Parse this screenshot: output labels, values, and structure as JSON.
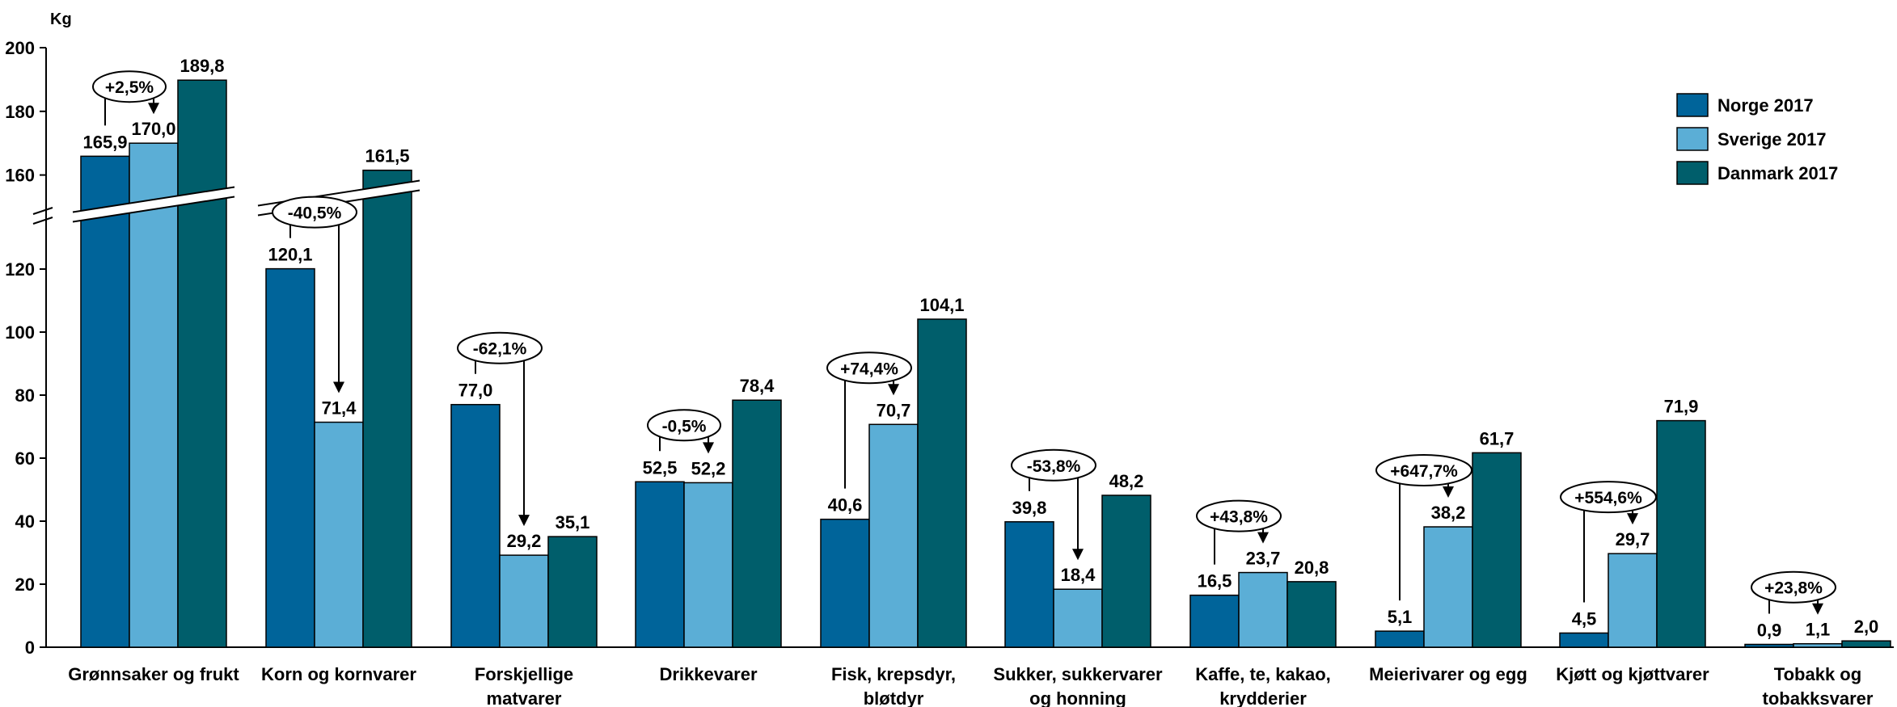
{
  "chart_data": {
    "type": "bar",
    "unit_label": "Kg",
    "categories": [
      [
        "Grønnsaker og frukt"
      ],
      [
        "Korn og kornvarer"
      ],
      [
        "Forskjellige",
        "matvarer"
      ],
      [
        "Drikkevarer"
      ],
      [
        "Fisk, krepsdyr,",
        "bløtdyr"
      ],
      [
        "Sukker, sukkervarer",
        "og honning"
      ],
      [
        "Kaffe, te, kakao,",
        "krydderier"
      ],
      [
        "Meierivarer og egg"
      ],
      [
        "Kjøtt og kjøttvarer"
      ],
      [
        "Tobakk og",
        "tobakksvarer"
      ]
    ],
    "series": [
      {
        "name": "Norge 2017",
        "color": "#00649a",
        "values": [
          165.9,
          120.1,
          77.0,
          52.5,
          40.6,
          39.8,
          16.5,
          5.1,
          4.5,
          0.9
        ],
        "labels": [
          "165,9",
          "120,1",
          "77,0",
          "52,5",
          "40,6",
          "39,8",
          "16,5",
          "5,1",
          "4,5",
          "0,9"
        ]
      },
      {
        "name": "Sverige 2017",
        "color": "#5baed6",
        "values": [
          170.0,
          71.4,
          29.2,
          52.2,
          70.7,
          18.4,
          23.7,
          38.2,
          29.7,
          1.1
        ],
        "labels": [
          "170,0",
          "71,4",
          "29,2",
          "52,2",
          "70,7",
          "18,4",
          "23,7",
          "38,2",
          "29,7",
          "1,1"
        ]
      },
      {
        "name": "Danmark 2017",
        "color": "#005e6b",
        "values": [
          189.8,
          161.5,
          35.1,
          78.4,
          104.1,
          48.2,
          20.8,
          61.7,
          71.9,
          2.0
        ],
        "labels": [
          "189,8",
          "161,5",
          "35,1",
          "78,4",
          "104,1",
          "48,2",
          "20,8",
          "61,7",
          "71,9",
          "2,0"
        ]
      }
    ],
    "changes": [
      "+2,5%",
      "-40,5%",
      "-62,1%",
      "-0,5%",
      "+74,4%",
      "-53,8%",
      "+43,8%",
      "+647,7%",
      "+554,6%",
      "+23,8%"
    ],
    "y_ticks": [
      "0",
      "20",
      "40",
      "60",
      "80",
      "100",
      "120",
      "160",
      "180",
      "200"
    ],
    "ylim": [
      0,
      200
    ],
    "axis_break": {
      "from": 130,
      "to": 150
    },
    "legend_position": "top-right",
    "grid": false
  }
}
